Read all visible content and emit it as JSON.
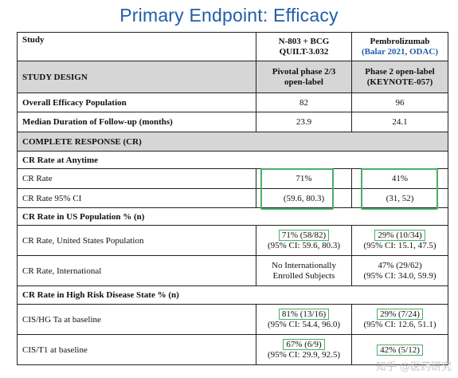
{
  "title": "Primary Endpoint: Efficacy",
  "header": {
    "study_label": "Study",
    "n803": [
      "N-803 + BCG",
      "QUILT-3.032"
    ],
    "pembro": [
      "Pembrolizumab",
      "(Balar 2021, ODAC)"
    ]
  },
  "study_design": {
    "label": "STUDY DESIGN",
    "n803": [
      "Pivotal phase 2/3",
      "open-label"
    ],
    "pembro": [
      "Phase 2 open-label",
      "(KEYNOTE-057)"
    ]
  },
  "overall_population": {
    "label": "Overall Efficacy Population",
    "n803": "82",
    "pembro": "96"
  },
  "median_followup": {
    "label": "Median Duration of Follow-up (months)",
    "n803": "23.9",
    "pembro": "24.1"
  },
  "complete_response": {
    "label": "COMPLETE RESPONSE (CR)"
  },
  "cr_anytime": {
    "label": "CR Rate at Anytime",
    "cr_rate": {
      "label": "CR Rate",
      "n803": "71%",
      "pembro": "41%"
    },
    "cr_ci": {
      "label": "CR Rate 95% CI",
      "n803": "(59.6, 80.3)",
      "pembro": "(31, 52)"
    }
  },
  "cr_us": {
    "label": "CR Rate in US Population % (n)",
    "us": {
      "label": "CR Rate, United States Population",
      "n803": [
        "71% (58/82)",
        "(95% CI: 59.6, 80.3)"
      ],
      "pembro": [
        "29% (10/34)",
        "(95% CI: 15.1, 47.5)"
      ]
    },
    "intl": {
      "label": "CR Rate, International",
      "n803": [
        "No Internationally",
        "Enrolled Subjects"
      ],
      "pembro": [
        "47% (29/62)",
        "(95% CI: 34.0, 59.9)"
      ]
    }
  },
  "cr_high_risk": {
    "label": "CR Rate in High Risk Disease State % (n)",
    "cis_hg": {
      "label": "CIS/HG Ta at baseline",
      "n803": [
        "81% (13/16)",
        "(95% CI: 54.4, 96.0)"
      ],
      "pembro": [
        "29% (7/24)",
        "(95% CI: 12.6, 51.1)"
      ]
    },
    "cis_t1": {
      "label": "CIS/T1 at baseline",
      "n803": [
        "67% (6/9)",
        "(95% CI: 29.9, 92.5)"
      ],
      "pembro": [
        "42% (5/12)",
        ""
      ]
    }
  },
  "watermark": "知乎 @医药研究",
  "colors": {
    "title": "#1f5fa8",
    "highlight": "#4cae6a",
    "shade": "#d6d6d6"
  }
}
